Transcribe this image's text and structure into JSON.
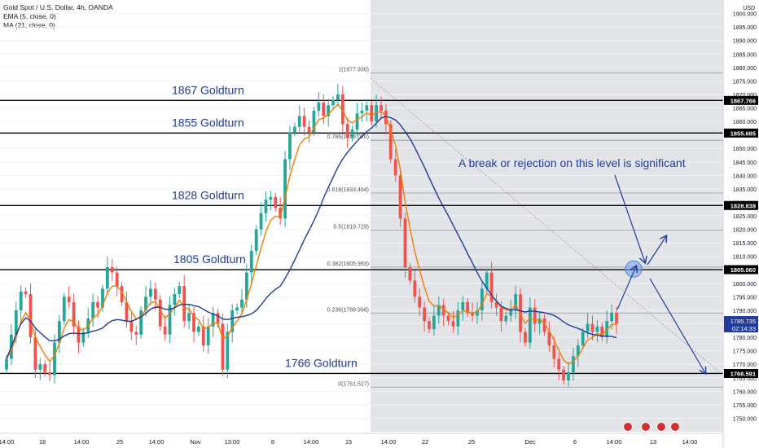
{
  "legend": {
    "title": "Gold Spot / U.S. Dollar, 4h, OANDA",
    "ema": "EMA (5, close, 0)",
    "ma": "MA (21, close, 0)"
  },
  "currency": "USD",
  "colors": {
    "up": "#26a69a",
    "down": "#ef5350",
    "ema": "#f57c00",
    "ma": "#1f3b9c",
    "goldturn_text": "#1f3b9c",
    "annotation": "#1f3b9c",
    "fib": "#9598a1",
    "shade": "#e3e4e8"
  },
  "chart_data": {
    "type": "candlestick",
    "ylim": [
      1745,
      1905
    ],
    "y_ticks": [
      1750,
      1755,
      1760,
      1765,
      1770,
      1775,
      1780,
      1785,
      1790,
      1795,
      1800,
      1805,
      1810,
      1815,
      1820,
      1825,
      1830,
      1835,
      1840,
      1845,
      1850,
      1855,
      1860,
      1865,
      1870,
      1875,
      1880,
      1885,
      1890,
      1895,
      1900
    ],
    "top_tick_label": "1905.000",
    "x_tick_labels": [
      "14:00",
      "18",
      "14:00",
      "25",
      "14:00",
      "Nov",
      "13:00",
      "8",
      "14:00",
      "15",
      "14:00",
      "22",
      "25",
      "Dec",
      "6",
      "14:00",
      "13",
      "14:00"
    ],
    "last_price": "1785.735",
    "countdown": "02:14:33",
    "price_tags": [
      "1867.766",
      "1855.685",
      "1828.838",
      "1805.060",
      "1766.591"
    ],
    "goldturn_lines": [
      {
        "label": "1867 Goldturn",
        "price": 1867.766
      },
      {
        "label": "1855 Goldturn",
        "price": 1855.685
      },
      {
        "label": "1828 Goldturn",
        "price": 1828.838
      },
      {
        "label": "1805 Goldturn",
        "price": 1805.06
      },
      {
        "label": "1766 Goldturn",
        "price": 1766.591
      }
    ],
    "fib_levels": [
      {
        "label": "1(1877.930)",
        "price": 1877.93
      },
      {
        "label": "0.786(1853.020)",
        "price": 1853.02
      },
      {
        "label": "0.618(1833.464)",
        "price": 1833.464
      },
      {
        "label": "0.5(1819.729)",
        "price": 1819.729
      },
      {
        "label": "0.382(1805.993)",
        "price": 1805.993
      },
      {
        "label": "0.236(1788.998)",
        "price": 1788.998
      },
      {
        "label": "0(1761.527)",
        "price": 1761.527
      }
    ],
    "annotation": "A break or rejection on this level is significant",
    "closes": [
      1772,
      1781,
      1790,
      1797,
      1796,
      1780,
      1768,
      1770,
      1767,
      1766,
      1778,
      1786,
      1795,
      1793,
      1784,
      1778,
      1782,
      1787,
      1793,
      1791,
      1798,
      1806,
      1804,
      1799,
      1793,
      1786,
      1782,
      1781,
      1790,
      1795,
      1798,
      1794,
      1784,
      1781,
      1792,
      1796,
      1799,
      1786,
      1789,
      1782,
      1784,
      1777,
      1784,
      1789,
      1785,
      1768,
      1782,
      1790,
      1791,
      1794,
      1804,
      1812,
      1820,
      1826,
      1831,
      1832,
      1828,
      1824,
      1846,
      1856,
      1858,
      1862,
      1858,
      1856,
      1864,
      1867,
      1862,
      1866,
      1868,
      1870,
      1859,
      1854,
      1857,
      1863,
      1864,
      1866,
      1860,
      1866,
      1864,
      1859,
      1846,
      1840,
      1824,
      1806,
      1801,
      1795,
      1791,
      1786,
      1783,
      1788,
      1792,
      1788,
      1786,
      1784,
      1790,
      1793,
      1789,
      1788,
      1790,
      1798,
      1804,
      1793,
      1791,
      1786,
      1788,
      1790,
      1796,
      1782,
      1778,
      1791,
      1785,
      1787,
      1782,
      1777,
      1772,
      1768,
      1764,
      1767,
      1773,
      1777,
      1782,
      1785,
      1782,
      1784,
      1780,
      1786,
      1789,
      1785
    ]
  }
}
